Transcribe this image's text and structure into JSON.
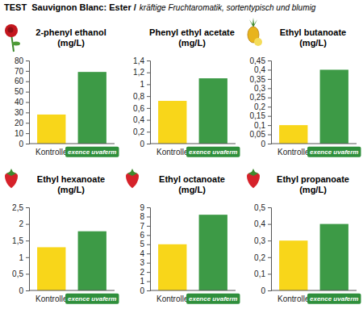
{
  "header": {
    "title": "TEST  Sauvignon Blanc: Ester /",
    "subtitle": "kräftige Fruchtaromatik, sortentypisch und blumig"
  },
  "chart_data": [
    {
      "type": "bar",
      "title": "2-phenyl ethanol",
      "subtitle": "(mg/L)",
      "categories": [
        "Kontrolle",
        "exence uvaferm"
      ],
      "values": [
        28,
        69
      ],
      "colors": [
        "#f8d61a",
        "#3d9a46"
      ],
      "ylim": [
        0,
        80
      ],
      "yticks": [
        0,
        10,
        20,
        30,
        40,
        50,
        60,
        70,
        80
      ],
      "grid": false
    },
    {
      "type": "bar",
      "title": "Phenyl ethyl acetate",
      "subtitle": "(mg/L)",
      "categories": [
        "Kontrolle",
        "exence uvaferm"
      ],
      "values": [
        0.72,
        1.1
      ],
      "colors": [
        "#f8d61a",
        "#3d9a46"
      ],
      "ylim": [
        0,
        1.4
      ],
      "yticks": [
        0,
        {
          "value": 0.2,
          "label": "0,2"
        },
        {
          "value": 0.4,
          "label": "0,4"
        },
        {
          "value": 0.6,
          "label": "0,6"
        },
        {
          "value": 0.8,
          "label": "0,8"
        },
        1,
        {
          "value": 1.2,
          "label": "1,2"
        },
        {
          "value": 1.4,
          "label": "1,4"
        }
      ],
      "grid": false
    },
    {
      "type": "bar",
      "title": "Ethyl butanoate",
      "subtitle": "(mg/L)",
      "categories": [
        "Kontrolle",
        "exence uvaferm"
      ],
      "values": [
        0.1,
        0.4
      ],
      "colors": [
        "#f8d61a",
        "#3d9a46"
      ],
      "ylim": [
        0,
        0.45
      ],
      "yticks": [
        0,
        {
          "value": 0.05,
          "label": "0,05"
        },
        {
          "value": 0.1,
          "label": "0,1"
        },
        {
          "value": 0.15,
          "label": "0,15"
        },
        {
          "value": 0.2,
          "label": "0,2"
        },
        {
          "value": 0.25,
          "label": "0,25"
        },
        {
          "value": 0.3,
          "label": "0,3"
        },
        {
          "value": 0.35,
          "label": "0,35"
        },
        {
          "value": 0.4,
          "label": "0,4"
        },
        {
          "value": 0.45,
          "label": "0,45"
        }
      ],
      "grid": false
    },
    {
      "type": "bar",
      "title": "Ethyl hexanoate",
      "subtitle": "(mg/L)",
      "categories": [
        "Kontrolle",
        "exence uvaferm"
      ],
      "values": [
        1.3,
        1.78
      ],
      "colors": [
        "#f8d61a",
        "#3d9a46"
      ],
      "ylim": [
        0,
        2.5
      ],
      "yticks": [
        0,
        {
          "value": 0.5,
          "label": "0,5"
        },
        1,
        {
          "value": 1.5,
          "label": "1,5"
        },
        2,
        {
          "value": 2.5,
          "label": "2,5"
        }
      ],
      "grid": false
    },
    {
      "type": "bar",
      "title": "Ethyl octanoate",
      "subtitle": "(mg/L)",
      "categories": [
        "Kontrolle",
        "exence uvaferm"
      ],
      "values": [
        5,
        8.2
      ],
      "colors": [
        "#f8d61a",
        "#3d9a46"
      ],
      "ylim": [
        0,
        9
      ],
      "yticks": [
        0,
        1,
        2,
        3,
        4,
        5,
        6,
        7,
        8,
        9
      ],
      "grid": false
    },
    {
      "type": "bar",
      "title": "Ethyl propanoate",
      "subtitle": "(mg/L)",
      "categories": [
        "Kontrolle",
        "exence uvaferm"
      ],
      "values": [
        0.3,
        0.4
      ],
      "colors": [
        "#f8d61a",
        "#3d9a46"
      ],
      "ylim": [
        0,
        0.5
      ],
      "yticks": [
        0,
        {
          "value": 0.1,
          "label": "0,1"
        },
        {
          "value": 0.2,
          "label": "0,2"
        },
        {
          "value": 0.3,
          "label": "0,3"
        },
        {
          "value": 0.4,
          "label": "0,4"
        },
        {
          "value": 0.5,
          "label": "0,5"
        }
      ],
      "grid": false
    }
  ]
}
